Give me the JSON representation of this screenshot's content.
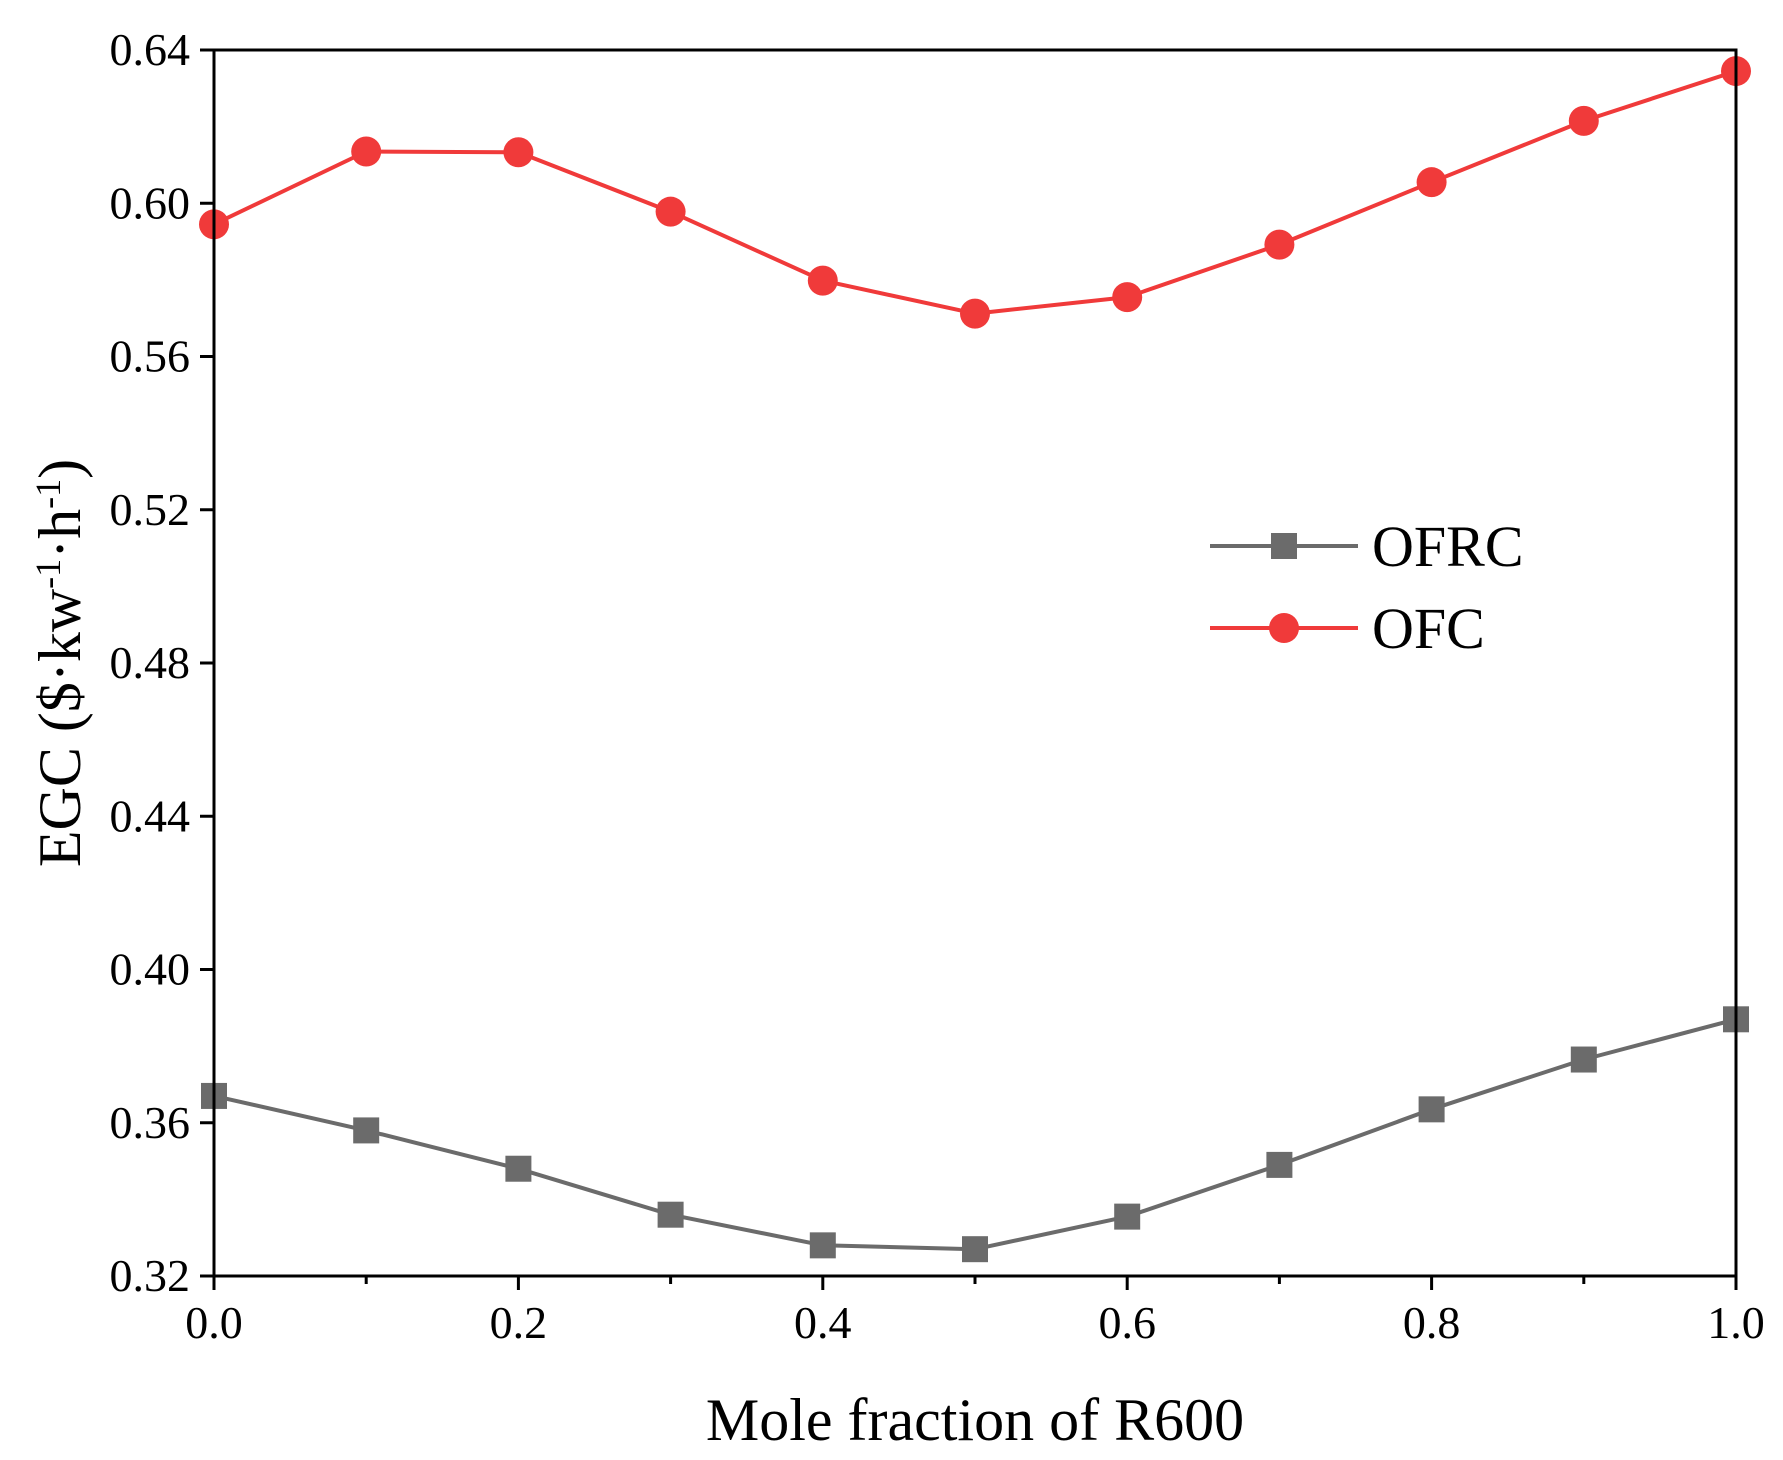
{
  "chart_data": {
    "type": "line",
    "xlabel": "Mole fraction of R600",
    "ylabel": {
      "prefix": "EGC ($·kw",
      "sup1": "-1",
      "mid": "·h",
      "sup2": "-1",
      "suffix": ")"
    },
    "xlim": [
      0.0,
      1.0
    ],
    "ylim": [
      0.32,
      0.64
    ],
    "x_ticks": [
      "0.0",
      "0.2",
      "0.4",
      "0.6",
      "0.8",
      "1.0"
    ],
    "x_tick_values": [
      0.0,
      0.2,
      0.4,
      0.6,
      0.8,
      1.0
    ],
    "y_ticks": [
      "0.32",
      "0.36",
      "0.40",
      "0.44",
      "0.48",
      "0.52",
      "0.56",
      "0.60",
      "0.64"
    ],
    "y_tick_values": [
      0.32,
      0.36,
      0.4,
      0.44,
      0.48,
      0.52,
      0.56,
      0.6,
      0.64
    ],
    "x_minor_step": 0.1,
    "grid": false,
    "legend_position": "center-right",
    "x": [
      0.0,
      0.1,
      0.2,
      0.3,
      0.4,
      0.5,
      0.6,
      0.7,
      0.8,
      0.9,
      1.0
    ],
    "series": [
      {
        "name": "OFRC",
        "color": "#6b6b6b",
        "marker": "square",
        "values": [
          0.367,
          0.358,
          0.348,
          0.336,
          0.328,
          0.327,
          0.3355,
          0.349,
          0.3635,
          0.3765,
          0.387
        ]
      },
      {
        "name": "OFC",
        "color": "#f03a3a",
        "marker": "circle",
        "values": [
          0.5945,
          0.6135,
          0.6133,
          0.5978,
          0.5798,
          0.5712,
          0.5755,
          0.5892,
          0.6055,
          0.6215,
          0.6345
        ]
      }
    ]
  }
}
